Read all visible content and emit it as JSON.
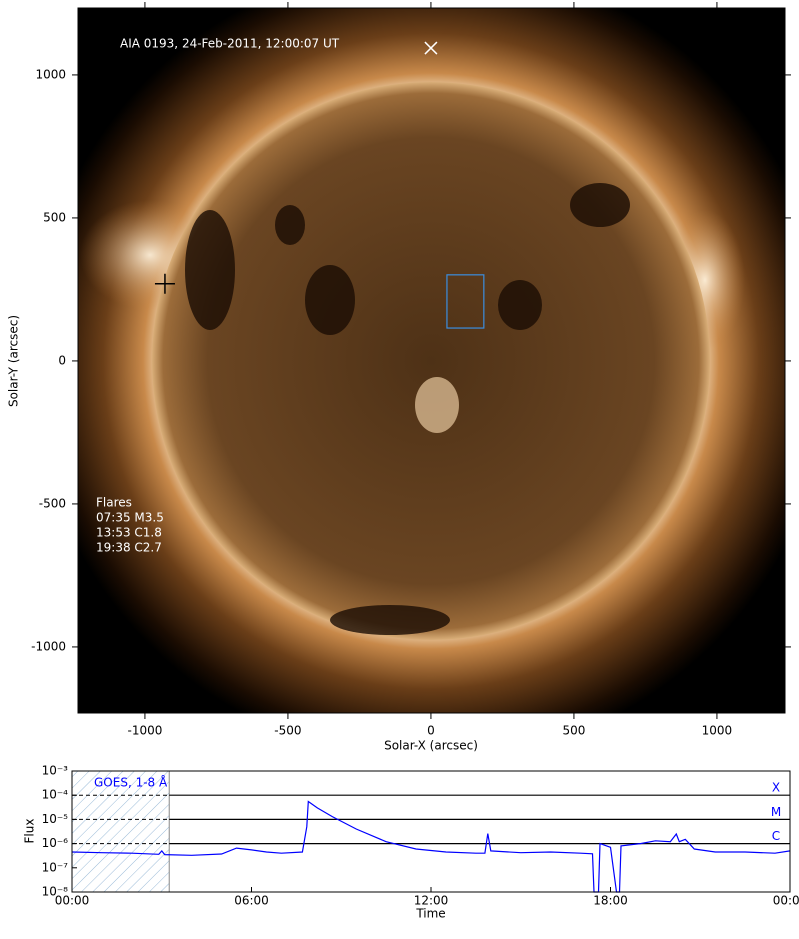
{
  "chart_data": [
    {
      "type": "image",
      "title": "AIA 0193, 24-Feb-2011, 12:00:07 UT",
      "xlabel": "Solar-X (arcsec)",
      "ylabel": "Solar-Y (arcsec)",
      "xlim": [
        -1234,
        1238
      ],
      "ylim": [
        -1231,
        1234
      ],
      "xticks": [
        -1000,
        -500,
        0,
        500,
        1000
      ],
      "yticks": [
        -1000,
        -500,
        0,
        500,
        1000
      ],
      "annotation": {
        "title": "Flares",
        "lines": [
          "07:35 M3.5",
          "13:53 C1.8",
          "19:38 C2.7"
        ]
      },
      "markers": {
        "x": [
          0,
          -930
        ],
        "y": [
          1094,
          270
        ],
        "colors": [
          "#ffffff",
          "#000000"
        ]
      },
      "box": {
        "x": [
          56,
          185
        ],
        "y": [
          115,
          301
        ],
        "color": "#3b8ee0"
      }
    },
    {
      "type": "line",
      "xlabel": "Time",
      "ylabel": "Flux",
      "xlim": [
        0,
        24
      ],
      "ylim": [
        1e-08,
        0.001
      ],
      "log_y": true,
      "xticks": [
        {
          "value": 0,
          "label": "00:00"
        },
        {
          "value": 6,
          "label": "06:00"
        },
        {
          "value": 12,
          "label": "12:00"
        },
        {
          "value": 18,
          "label": "18:00"
        },
        {
          "value": 24,
          "label": "00:00"
        }
      ],
      "yticks": [
        {
          "value": 1e-08,
          "label": "10⁻⁸"
        },
        {
          "value": 1e-07,
          "label": "10⁻⁷"
        },
        {
          "value": 1e-06,
          "label": "10⁻⁶"
        },
        {
          "value": 1e-05,
          "label": "10⁻⁵"
        },
        {
          "value": 0.0001,
          "label": "10⁻⁴"
        },
        {
          "value": 0.001,
          "label": "10⁻³"
        }
      ],
      "levels": [
        {
          "value": 0.0001,
          "label": "X"
        },
        {
          "value": 1e-05,
          "label": "M"
        },
        {
          "value": 1e-06,
          "label": "C"
        }
      ],
      "shade": [
        0,
        3.25
      ],
      "series": [
        {
          "name": "GOES, 1-8 Å",
          "color": "#0000ff",
          "x": [
            0,
            1,
            2,
            2.9,
            3,
            3.1,
            4,
            5,
            5.5,
            6,
            6.5,
            7,
            7.7,
            7.85,
            7.9,
            8.2,
            8.7,
            9.5,
            10.5,
            11.5,
            12.5,
            13.5,
            13.8,
            13.9,
            14,
            15,
            16,
            17,
            17.4,
            17.45,
            17.6,
            17.65,
            18,
            18.2,
            18.3,
            18.35,
            19,
            19.5,
            20,
            20.2,
            20.3,
            20.5,
            20.8,
            21.5,
            22.5,
            23.5,
            24
          ],
          "values": [
            4.5e-07,
            4.2e-07,
            4e-07,
            3.6e-07,
            5e-07,
            3.5e-07,
            3.3e-07,
            3.7e-07,
            6.5e-07,
            5.5e-07,
            4.5e-07,
            4e-07,
            4.5e-07,
            5e-06,
            5.5e-05,
            3e-05,
            1.3e-05,
            4e-06,
            1.2e-06,
            6e-07,
            4.5e-07,
            4e-07,
            4e-07,
            2.6e-06,
            5e-07,
            4.2e-07,
            4.5e-07,
            4e-07,
            3.8e-07,
            1e-08,
            1e-08,
            1e-06,
            7e-07,
            1e-08,
            1e-08,
            8e-07,
            1e-06,
            1.3e-06,
            1.2e-06,
            2.5e-06,
            1.2e-06,
            1.5e-06,
            6e-07,
            4.5e-07,
            4.5e-07,
            4e-07,
            5e-07
          ]
        }
      ]
    }
  ]
}
